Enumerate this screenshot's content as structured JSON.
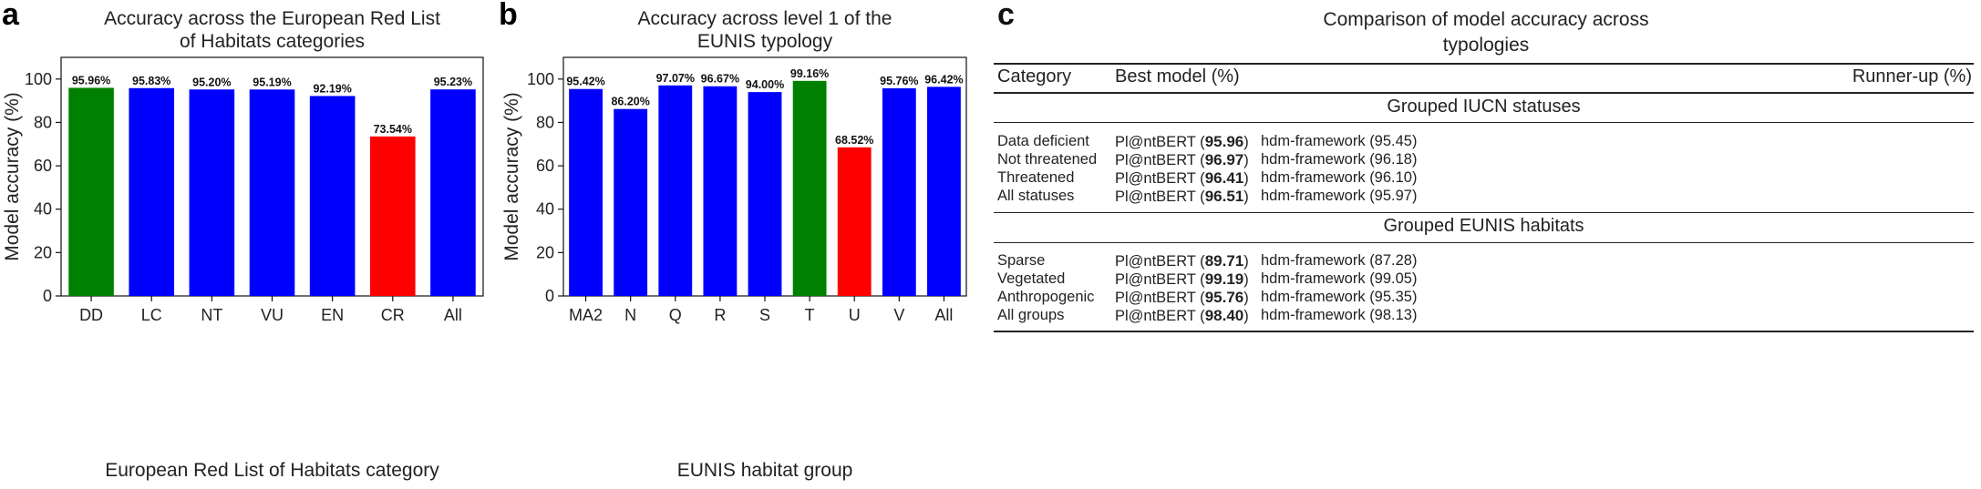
{
  "chart_data": [
    {
      "type": "bar",
      "panel": "a",
      "title": [
        "Accuracy across the European Red List",
        "of Habitats categories"
      ],
      "xlabel": "European Red List of Habitats category",
      "ylabel": "Model accuracy (%)",
      "categories": [
        "DD",
        "LC",
        "NT",
        "VU",
        "EN",
        "CR",
        "All"
      ],
      "values": [
        95.96,
        95.83,
        95.2,
        95.19,
        92.19,
        73.54,
        95.23
      ],
      "value_labels": [
        "95.96%",
        "95.83%",
        "95.20%",
        "95.19%",
        "92.19%",
        "73.54%",
        "95.23%"
      ],
      "colors": [
        "#008000",
        "#0000ff",
        "#0000ff",
        "#0000ff",
        "#0000ff",
        "#ff0000",
        "#0000ff"
      ],
      "yticks": [
        0,
        20,
        40,
        60,
        80,
        100
      ],
      "ylim": [
        0,
        110
      ],
      "grid": false
    },
    {
      "type": "bar",
      "panel": "b",
      "title": [
        "Accuracy across level 1 of the",
        "EUNIS typology"
      ],
      "xlabel": "EUNIS habitat group",
      "ylabel": "Model accuracy (%)",
      "categories": [
        "MA2",
        "N",
        "Q",
        "R",
        "S",
        "T",
        "U",
        "V",
        "All"
      ],
      "values": [
        95.42,
        86.2,
        97.07,
        96.67,
        94.0,
        99.16,
        68.52,
        95.76,
        96.42
      ],
      "value_labels": [
        "95.42%",
        "86.20%",
        "97.07%",
        "96.67%",
        "94.00%",
        "99.16%",
        "68.52%",
        "95.76%",
        "96.42%"
      ],
      "colors": [
        "#0000ff",
        "#0000ff",
        "#0000ff",
        "#0000ff",
        "#0000ff",
        "#008000",
        "#ff0000",
        "#0000ff",
        "#0000ff"
      ],
      "yticks": [
        0,
        20,
        40,
        60,
        80,
        100
      ],
      "ylim": [
        0,
        110
      ],
      "grid": false
    }
  ],
  "table_panel": {
    "letter": "c",
    "title_line1": "Comparison of model accuracy across",
    "title_line2": "typologies",
    "headers": {
      "category": "Category",
      "best": "Best model (%)",
      "runner": "Runner-up (%)"
    },
    "groups": [
      {
        "title": "Grouped IUCN statuses",
        "rows": [
          {
            "category": "Data deficient",
            "best_model": "Pl@ntBERT",
            "best_value": "95.96",
            "runner_up": "hdm-framework (95.45)"
          },
          {
            "category": "Not threatened",
            "best_model": "Pl@ntBERT",
            "best_value": "96.97",
            "runner_up": "hdm-framework (96.18)"
          },
          {
            "category": "Threatened",
            "best_model": "Pl@ntBERT",
            "best_value": "96.41",
            "runner_up": "hdm-framework (96.10)"
          },
          {
            "category": "All statuses",
            "best_model": "Pl@ntBERT",
            "best_value": "96.51",
            "runner_up": "hdm-framework (95.97)"
          }
        ]
      },
      {
        "title": "Grouped EUNIS habitats",
        "rows": [
          {
            "category": "Sparse",
            "best_model": "Pl@ntBERT",
            "best_value": "89.71",
            "runner_up": "hdm-framework (87.28)"
          },
          {
            "category": "Vegetated",
            "best_model": "Pl@ntBERT",
            "best_value": "99.19",
            "runner_up": "hdm-framework (99.05)"
          },
          {
            "category": "Anthropogenic",
            "best_model": "Pl@ntBERT",
            "best_value": "95.76",
            "runner_up": "hdm-framework (95.35)"
          },
          {
            "category": "All groups",
            "best_model": "Pl@ntBERT",
            "best_value": "98.40",
            "runner_up": "hdm-framework (98.13)"
          }
        ]
      }
    ]
  },
  "panel_letters": {
    "a": "a",
    "b": "b"
  }
}
